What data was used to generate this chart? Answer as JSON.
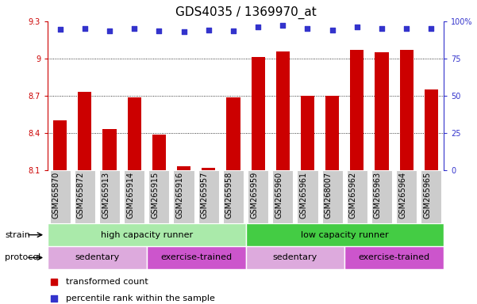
{
  "title": "GDS4035 / 1369970_at",
  "samples": [
    "GSM265870",
    "GSM265872",
    "GSM265913",
    "GSM265914",
    "GSM265915",
    "GSM265916",
    "GSM265957",
    "GSM265958",
    "GSM265959",
    "GSM265960",
    "GSM265961",
    "GSM268007",
    "GSM265962",
    "GSM265963",
    "GSM265964",
    "GSM265965"
  ],
  "bar_values": [
    8.5,
    8.73,
    8.43,
    8.69,
    8.39,
    8.13,
    8.12,
    8.69,
    9.01,
    9.06,
    8.7,
    8.7,
    9.07,
    9.05,
    9.07,
    8.75
  ],
  "percentile_y": [
    9.235,
    9.245,
    9.225,
    9.245,
    9.22,
    9.215,
    9.23,
    9.225,
    9.255,
    9.265,
    9.245,
    9.23,
    9.255,
    9.245,
    9.245,
    9.24
  ],
  "ylim": [
    8.1,
    9.3
  ],
  "ytick_positions": [
    8.1,
    8.4,
    8.7,
    9.0,
    9.3
  ],
  "ytick_labels": [
    "8.1",
    "8.4",
    "8.7",
    "9",
    "9.3"
  ],
  "right_tick_labels": [
    "0",
    "25",
    "50",
    "75",
    "100%"
  ],
  "bar_color": "#cc0000",
  "dot_color": "#3333cc",
  "strain_groups": [
    {
      "label": "high capacity runner",
      "start": 0,
      "end": 8,
      "color": "#aaeaaa"
    },
    {
      "label": "low capacity runner",
      "start": 8,
      "end": 16,
      "color": "#44cc44"
    }
  ],
  "protocol_groups": [
    {
      "label": "sedentary",
      "start": 0,
      "end": 4,
      "color": "#ddaadd"
    },
    {
      "label": "exercise-trained",
      "start": 4,
      "end": 8,
      "color": "#cc55cc"
    },
    {
      "label": "sedentary",
      "start": 8,
      "end": 12,
      "color": "#ddaadd"
    },
    {
      "label": "exercise-trained",
      "start": 12,
      "end": 16,
      "color": "#cc55cc"
    }
  ],
  "title_fontsize": 11,
  "tick_fontsize": 7,
  "panel_fontsize": 8,
  "legend_fontsize": 8,
  "bar_width": 0.55,
  "base_value": 8.1
}
